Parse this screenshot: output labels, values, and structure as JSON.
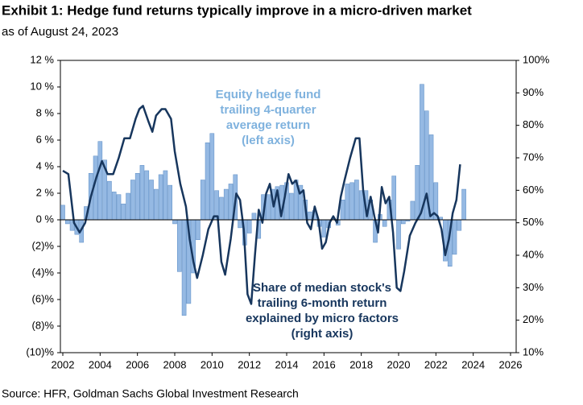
{
  "chart_data": {
    "type": "bar-line",
    "title": "Exhibit 1: Hedge fund returns typically improve in a micro-driven market",
    "subtitle": "as of August 24, 2023",
    "source": "Source: HFR, Goldman Sachs Global Investment Research",
    "xlim": [
      2002,
      2026
    ],
    "xticks": [
      2002,
      2004,
      2006,
      2008,
      2010,
      2012,
      2014,
      2016,
      2018,
      2020,
      2022,
      2024,
      2026
    ],
    "ylim": [
      -10,
      12
    ],
    "yticks": [
      {
        "value": -10,
        "label": "(10)%"
      },
      {
        "value": -8,
        "label": "(8)%"
      },
      {
        "value": -6,
        "label": "(6)%"
      },
      {
        "value": -4,
        "label": "(4)%"
      },
      {
        "value": -2,
        "label": "(2)%"
      },
      {
        "value": 0,
        "label": "0 %"
      },
      {
        "value": 2,
        "label": "2 %"
      },
      {
        "value": 4,
        "label": "4 %"
      },
      {
        "value": 6,
        "label": "6 %"
      },
      {
        "value": 8,
        "label": "8 %"
      },
      {
        "value": 10,
        "label": "10 %"
      },
      {
        "value": 12,
        "label": "12 %"
      }
    ],
    "y2lim": [
      10,
      100
    ],
    "y2ticks": [
      {
        "value": 10,
        "label": "10%"
      },
      {
        "value": 20,
        "label": "20%"
      },
      {
        "value": 30,
        "label": "30%"
      },
      {
        "value": 40,
        "label": "40%"
      },
      {
        "value": 50,
        "label": "50%"
      },
      {
        "value": 60,
        "label": "60%"
      },
      {
        "value": 70,
        "label": "70%"
      },
      {
        "value": 80,
        "label": "80%"
      },
      {
        "value": 90,
        "label": "90%"
      },
      {
        "value": 100,
        "label": "100%"
      }
    ],
    "annotations": [
      {
        "lines": [
          "Equity hedge fund",
          "trailing 4-quarter",
          "average return",
          "(left axis)"
        ],
        "color": "#7fb2de"
      },
      {
        "lines": [
          "Share of median stock's",
          "trailing 6-month return",
          "explained by micro factors",
          "(right axis)"
        ],
        "color": "#17365d"
      }
    ],
    "series": [
      {
        "type": "bar",
        "color": "#95b9e3",
        "x": [
          2002.0,
          2002.25,
          2002.5,
          2002.75,
          2003.0,
          2003.25,
          2003.5,
          2003.75,
          2004.0,
          2004.25,
          2004.5,
          2004.75,
          2005.0,
          2005.25,
          2005.5,
          2005.75,
          2006.0,
          2006.25,
          2006.5,
          2006.75,
          2007.0,
          2007.25,
          2007.5,
          2007.75,
          2008.0,
          2008.25,
          2008.5,
          2008.75,
          2009.0,
          2009.25,
          2009.5,
          2009.75,
          2010.0,
          2010.25,
          2010.5,
          2010.75,
          2011.0,
          2011.25,
          2011.5,
          2011.75,
          2012.0,
          2012.25,
          2012.5,
          2012.75,
          2013.0,
          2013.25,
          2013.5,
          2013.75,
          2014.0,
          2014.25,
          2014.5,
          2014.75,
          2015.0,
          2015.25,
          2015.5,
          2015.75,
          2016.0,
          2016.25,
          2016.5,
          2016.75,
          2017.0,
          2017.25,
          2017.5,
          2017.75,
          2018.0,
          2018.25,
          2018.5,
          2018.75,
          2019.0,
          2019.25,
          2019.5,
          2019.75,
          2020.0,
          2020.25,
          2020.5,
          2020.75,
          2021.0,
          2021.25,
          2021.5,
          2021.75,
          2022.0,
          2022.25,
          2022.5,
          2022.75,
          2023.0,
          2023.25,
          2023.5
        ],
        "values": [
          1.1,
          -0.3,
          -0.8,
          -1.1,
          -1.7,
          1.0,
          3.5,
          4.8,
          5.9,
          4.5,
          2.9,
          2.1,
          1.9,
          1.2,
          2.0,
          3.0,
          3.5,
          4.1,
          3.7,
          3.0,
          2.3,
          3.4,
          3.7,
          2.6,
          -0.3,
          -3.9,
          -7.2,
          -6.3,
          -4.0,
          -1.5,
          3.0,
          5.8,
          6.5,
          2.2,
          1.7,
          2.3,
          2.7,
          3.4,
          -0.6,
          -1.9,
          -1.0,
          0.5,
          -1.4,
          1.9,
          1.9,
          2.3,
          2.5,
          2.6,
          2.8,
          2.0,
          3.0,
          2.6,
          1.5,
          0.6,
          0.7,
          -0.5,
          -1.3,
          -0.6,
          0.1,
          -0.4,
          1.5,
          2.7,
          2.8,
          3.0,
          2.2,
          2.2,
          1.5,
          -1.7,
          0.4,
          -0.5,
          1.5,
          3.3,
          -2.2,
          -0.3,
          -0.1,
          1.4,
          4.1,
          10.2,
          8.2,
          6.4,
          2.8,
          0.2,
          -3.1,
          -3.5,
          -2.6,
          -0.8,
          2.3
        ]
      },
      {
        "type": "line",
        "axis": "y2",
        "color": "#17365d",
        "x": [
          2002.0,
          2002.3,
          2002.6,
          2002.9,
          2003.2,
          2003.5,
          2003.8,
          2004.1,
          2004.4,
          2004.7,
          2005.0,
          2005.3,
          2005.6,
          2005.9,
          2006.1,
          2006.3,
          2006.6,
          2006.8,
          2007.0,
          2007.3,
          2007.5,
          2007.8,
          2008.0,
          2008.3,
          2008.6,
          2008.8,
          2009.0,
          2009.2,
          2009.5,
          2009.8,
          2010.1,
          2010.3,
          2010.5,
          2010.7,
          2011.0,
          2011.3,
          2011.5,
          2011.7,
          2011.9,
          2012.1,
          2012.3,
          2012.5,
          2012.7,
          2012.9,
          2013.1,
          2013.3,
          2013.5,
          2013.7,
          2013.9,
          2014.1,
          2014.3,
          2014.5,
          2014.7,
          2014.9,
          2015.1,
          2015.3,
          2015.5,
          2015.7,
          2015.9,
          2016.1,
          2016.3,
          2016.5,
          2016.7,
          2016.9,
          2017.1,
          2017.4,
          2017.7,
          2017.9,
          2018.1,
          2018.3,
          2018.5,
          2018.7,
          2018.9,
          2019.1,
          2019.3,
          2019.5,
          2019.7,
          2019.9,
          2020.1,
          2020.3,
          2020.6,
          2020.9,
          2021.2,
          2021.5,
          2021.7,
          2021.9,
          2022.1,
          2022.3,
          2022.5,
          2022.7,
          2022.9,
          2023.1,
          2023.3
        ],
        "values": [
          66,
          65,
          50,
          47,
          50,
          58,
          64,
          69,
          65,
          65,
          70,
          76,
          76,
          82,
          85,
          86,
          81,
          78,
          83,
          85,
          85,
          82,
          72,
          62,
          55,
          45,
          38,
          33,
          40,
          48,
          52,
          52,
          38,
          34,
          45,
          59,
          57,
          48,
          28,
          25,
          40,
          54,
          50,
          59,
          62,
          55,
          60,
          52,
          58,
          65,
          62,
          63,
          59,
          60,
          50,
          48,
          55,
          51,
          42,
          44,
          50,
          52,
          50,
          58,
          63,
          70,
          76,
          76,
          60,
          52,
          58,
          52,
          47,
          61,
          56,
          58,
          47,
          30,
          29,
          35,
          46,
          50,
          53,
          59,
          52,
          53,
          52,
          48,
          40,
          45,
          53,
          57,
          68
        ]
      }
    ]
  }
}
